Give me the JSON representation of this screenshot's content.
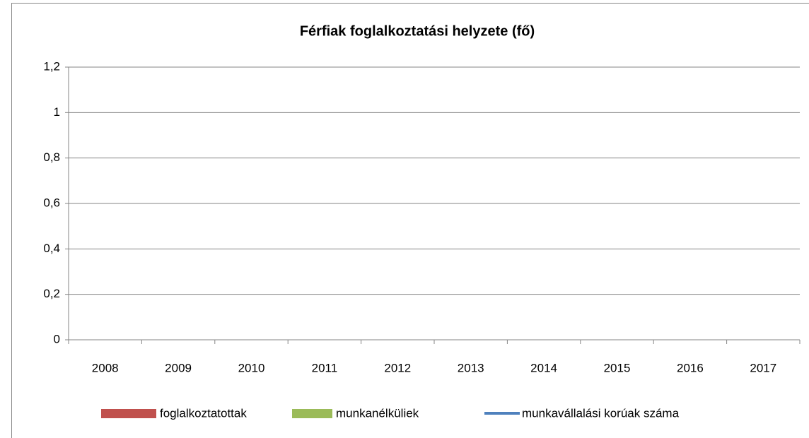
{
  "chart_data": {
    "type": "bar",
    "title": "Férfiak foglalkoztatási helyzete (fő)",
    "categories": [
      "2008",
      "2009",
      "2010",
      "2011",
      "2012",
      "2013",
      "2014",
      "2015",
      "2016",
      "2017"
    ],
    "series": [
      {
        "name": "foglalkoztatottak",
        "type": "bar",
        "color": "#c0504d",
        "values": [
          null,
          null,
          null,
          null,
          null,
          null,
          null,
          null,
          null,
          null
        ]
      },
      {
        "name": "munkanélküliek",
        "type": "bar",
        "color": "#9bbb59",
        "values": [
          null,
          null,
          null,
          null,
          null,
          null,
          null,
          null,
          null,
          null
        ]
      },
      {
        "name": "munkavállalási korúak száma",
        "type": "line",
        "color": "#4f81bd",
        "values": [
          null,
          null,
          null,
          null,
          null,
          null,
          null,
          null,
          null,
          null
        ]
      }
    ],
    "ylim": [
      0,
      1.2
    ],
    "yticks": [
      0,
      {
        "value": 0.2,
        "label": "0,2"
      },
      {
        "value": 0.4,
        "label": "0,4"
      },
      {
        "value": 0.6,
        "label": "0,6"
      },
      {
        "value": 0.8,
        "label": "0,8"
      },
      1,
      {
        "value": 1.2,
        "label": "1,2"
      }
    ],
    "grid": true,
    "legend": "bottom"
  }
}
